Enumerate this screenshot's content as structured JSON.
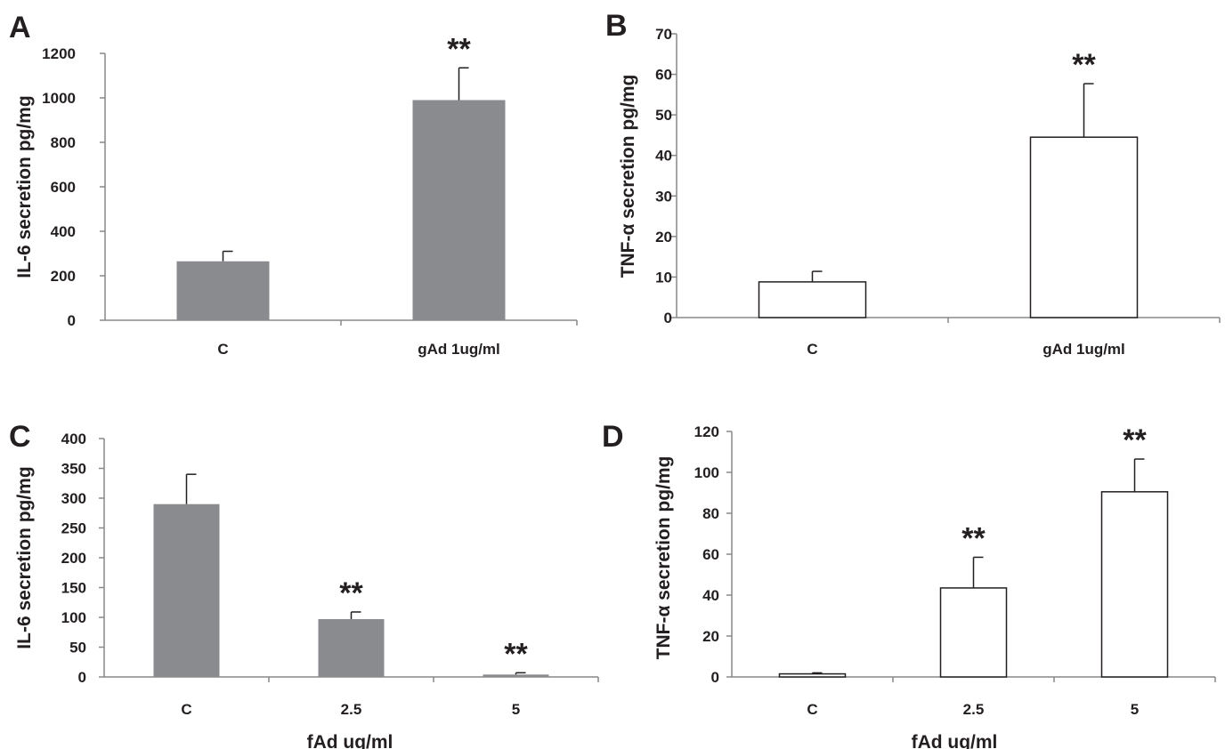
{
  "chart_data": [
    {
      "panel": "A",
      "type": "bar",
      "ylabel": "IL-6 secretion pg/mg",
      "xlabel": "",
      "categories": [
        "C",
        "gAd 1ug/ml"
      ],
      "values": [
        265,
        990
      ],
      "errors": [
        45,
        145
      ],
      "significance": [
        "",
        "**"
      ],
      "ylim": [
        0,
        1200
      ],
      "yticks": [
        0,
        200,
        400,
        600,
        800,
        1000,
        1200
      ],
      "bar_color": "#8a8b8f",
      "grid": false
    },
    {
      "panel": "B",
      "type": "bar",
      "ylabel": "TNF-α secretion pg/mg",
      "xlabel": "",
      "categories": [
        "C",
        "gAd 1ug/ml"
      ],
      "values": [
        8.8,
        44.5
      ],
      "errors": [
        2.6,
        13.2
      ],
      "significance": [
        "",
        "**"
      ],
      "ylim": [
        0,
        70
      ],
      "yticks": [
        0,
        10,
        20,
        30,
        40,
        50,
        60,
        70
      ],
      "bar_color": "#ffffff",
      "grid": false
    },
    {
      "panel": "C",
      "type": "bar",
      "ylabel": "IL-6 secretion pg/mg",
      "xlabel": "fAd ug/ml",
      "categories": [
        "C",
        "2.5",
        "5"
      ],
      "values": [
        290,
        97,
        4
      ],
      "errors": [
        50,
        12,
        3
      ],
      "significance": [
        "",
        "**",
        "**"
      ],
      "ylim": [
        0,
        400
      ],
      "yticks": [
        0,
        50,
        100,
        150,
        200,
        250,
        300,
        350,
        400
      ],
      "bar_color": "#8a8b8f",
      "grid": false
    },
    {
      "panel": "D",
      "type": "bar",
      "ylabel": "TNF-α secretion pg/mg",
      "xlabel": "fAd ug/ml",
      "categories": [
        "C",
        "2.5",
        "5"
      ],
      "values": [
        1.5,
        43.5,
        90.5
      ],
      "errors": [
        0.5,
        15,
        16
      ],
      "significance": [
        "",
        "**",
        "**"
      ],
      "ylim": [
        0,
        120
      ],
      "yticks": [
        0,
        20,
        40,
        60,
        80,
        100,
        120
      ],
      "bar_color": "#ffffff",
      "grid": false
    }
  ],
  "colors": {
    "axis": "#888888",
    "outline": "#231f20",
    "text": "#231f20"
  }
}
